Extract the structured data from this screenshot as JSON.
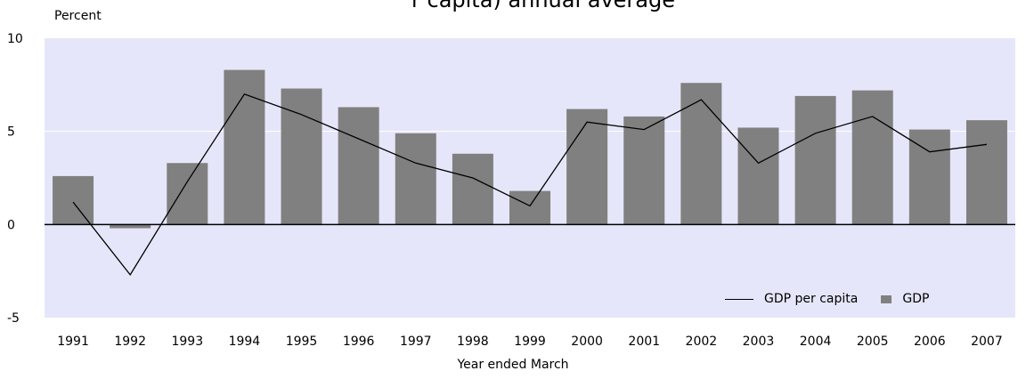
{
  "title_fragment": "r capita) annual average",
  "chart_data": {
    "type": "bar",
    "categories": [
      "1991",
      "1992",
      "1993",
      "1994",
      "1995",
      "1996",
      "1997",
      "1998",
      "1999",
      "2000",
      "2001",
      "2002",
      "2003",
      "2004",
      "2005",
      "2006",
      "2007"
    ],
    "series": [
      {
        "name": "GDP",
        "kind": "bar",
        "color": "#808080",
        "values": [
          2.6,
          -0.2,
          3.3,
          8.3,
          7.3,
          6.3,
          4.9,
          3.8,
          1.8,
          6.2,
          5.8,
          7.6,
          5.2,
          6.9,
          7.2,
          5.1,
          5.6
        ]
      },
      {
        "name": "GDP per capita",
        "kind": "line",
        "color": "#000000",
        "values": [
          1.2,
          -2.7,
          2.3,
          7.0,
          5.9,
          4.6,
          3.3,
          2.5,
          1.0,
          5.5,
          5.1,
          6.7,
          3.3,
          4.9,
          5.8,
          3.9,
          4.3
        ]
      }
    ],
    "ylabel": "Percent",
    "xlabel": "Year ended March",
    "ylim": [
      -5,
      10
    ],
    "yticks": [
      -5,
      0,
      5,
      10
    ],
    "grid": true,
    "legend_position": "bottom-right",
    "plot_background": "#e6e6fa"
  }
}
